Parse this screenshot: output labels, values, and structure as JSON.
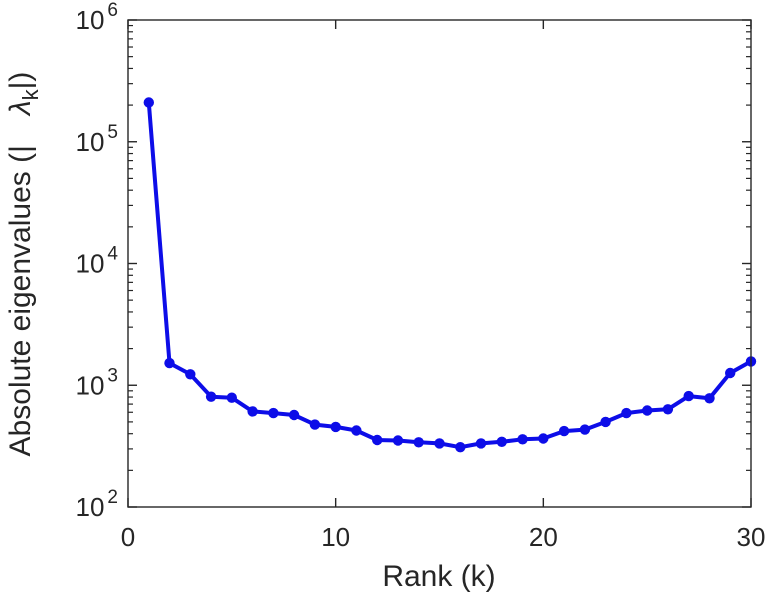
{
  "figure": {
    "background": "#ffffff",
    "axis_color": "#262626",
    "series_color": "#0d0de8"
  },
  "chart_data": {
    "type": "line",
    "title": "",
    "xlabel": "Rank (k)",
    "ylabel": "Absolute eigenvalues (| λ_k |)",
    "ylabel_parts": {
      "prefix": "Absolute eigenvalues (|",
      "symbol": "λ",
      "subscript": "k",
      "suffix": "|)"
    },
    "x": [
      1,
      2,
      3,
      4,
      5,
      6,
      7,
      8,
      9,
      10,
      11,
      12,
      13,
      14,
      15,
      16,
      17,
      18,
      19,
      20,
      21,
      22,
      23,
      24,
      25,
      26,
      27,
      28,
      29,
      30
    ],
    "y": [
      210000,
      1520,
      1230,
      805,
      790,
      610,
      590,
      570,
      475,
      455,
      425,
      355,
      352,
      340,
      333,
      310,
      333,
      343,
      360,
      365,
      420,
      432,
      500,
      590,
      620,
      635,
      815,
      782,
      1260,
      1570
    ],
    "xlim": [
      0,
      30
    ],
    "ylim": [
      100,
      1000000
    ],
    "yscale": "log",
    "xticks": [
      0,
      10,
      20,
      30
    ],
    "ytick_exponents": [
      2,
      3,
      4,
      5,
      6
    ],
    "ytick_base": "10",
    "grid": false,
    "legend": false,
    "line_color": "#0d0de8",
    "marker": "filled-circle",
    "axis_color": "#262626"
  }
}
